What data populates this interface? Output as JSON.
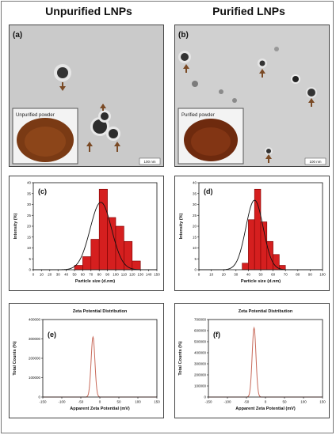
{
  "headers": {
    "left": "Unpurified LNPs",
    "right": "Purified LNPs"
  },
  "tem": [
    {
      "label": "(a)",
      "inset_text": "Unpurified powder",
      "scale_text": "100 nm"
    },
    {
      "label": "(b)",
      "inset_text": "Purified powder",
      "scale_text": "100 nm"
    }
  ],
  "colors": {
    "bar": "#d51f1f",
    "bar_edge": "#7a0000",
    "fit": "#111111",
    "zeta_line": "#c86a5a",
    "tem_bg": "#c9c9c9",
    "powder": "#7a3a14",
    "arrow": "#7a4a25"
  },
  "chart_data": [
    {
      "panel": "(c)",
      "type": "bar",
      "xlabel": "Particle size (d.nm)",
      "ylabel": "Intensity (%)",
      "xlim": [
        0,
        150
      ],
      "ylim": [
        0,
        40
      ],
      "xticks": [
        0,
        10,
        20,
        30,
        40,
        50,
        60,
        70,
        80,
        90,
        100,
        110,
        120,
        130,
        140,
        150
      ],
      "yticks": [
        0,
        5,
        10,
        15,
        20,
        25,
        30,
        35,
        40
      ],
      "bin_width": 10,
      "bins": [
        {
          "center": 55,
          "value": 2
        },
        {
          "center": 65,
          "value": 6
        },
        {
          "center": 75,
          "value": 14
        },
        {
          "center": 85,
          "value": 37
        },
        {
          "center": 95,
          "value": 24
        },
        {
          "center": 105,
          "value": 20
        },
        {
          "center": 115,
          "value": 13
        },
        {
          "center": 125,
          "value": 4
        }
      ],
      "fit": {
        "kind": "gaussian",
        "mean": 82,
        "sd": 13,
        "peak": 31
      }
    },
    {
      "panel": "(d)",
      "type": "bar",
      "xlabel": "Particle size (d.nm)",
      "ylabel": "Intensity (%)",
      "xlim": [
        0,
        100
      ],
      "ylim": [
        0,
        40
      ],
      "xticks": [
        0,
        10,
        20,
        30,
        40,
        50,
        60,
        70,
        80,
        90,
        100
      ],
      "yticks": [
        0,
        5,
        10,
        15,
        20,
        25,
        30,
        35,
        40
      ],
      "bin_width": 5,
      "bins": [
        {
          "center": 37.5,
          "value": 3
        },
        {
          "center": 42.5,
          "value": 23
        },
        {
          "center": 47.5,
          "value": 37
        },
        {
          "center": 52.5,
          "value": 22
        },
        {
          "center": 57.5,
          "value": 13
        },
        {
          "center": 62.5,
          "value": 7
        },
        {
          "center": 67.5,
          "value": 2
        }
      ],
      "fit": {
        "kind": "gaussian",
        "mean": 45,
        "sd": 7,
        "peak": 32
      }
    },
    {
      "panel": "(e)",
      "type": "line",
      "title": "Zeta Potential Distribution",
      "xlabel": "Apparent Zeta Potential (mV)",
      "ylabel": "Total Counts (%)",
      "xlim": [
        -150,
        150
      ],
      "ylim": [
        0,
        400000
      ],
      "xticks": [
        -150,
        -100,
        -50,
        0,
        50,
        100,
        150
      ],
      "yticks": [
        0,
        100000,
        200000,
        300000,
        400000
      ],
      "peak": {
        "center": -18,
        "height": 310000,
        "width": 5
      }
    },
    {
      "panel": "(f)",
      "type": "line",
      "title": "Zeta Potential Distribution",
      "xlabel": "Apparent Zeta Potential (mV)",
      "ylabel": "Total Counts (%)",
      "xlim": [
        -150,
        150
      ],
      "ylim": [
        0,
        700000
      ],
      "xticks": [
        -150,
        -100,
        -50,
        0,
        50,
        100,
        150
      ],
      "yticks": [
        0,
        100000,
        200000,
        300000,
        400000,
        500000,
        600000,
        700000
      ],
      "peak": {
        "center": -30,
        "height": 625000,
        "width": 5
      }
    }
  ]
}
